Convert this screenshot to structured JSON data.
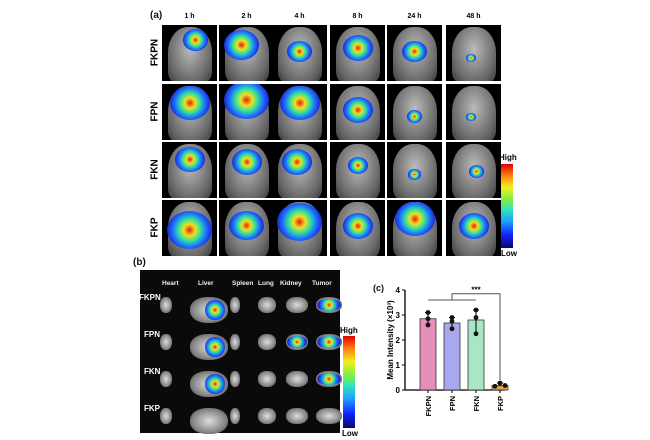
{
  "panel_a": {
    "label": "(a)",
    "timepoints": [
      "1 h",
      "2 h",
      "4 h",
      "8 h",
      "24 h",
      "48 h"
    ],
    "groups": [
      "FKPN",
      "FPN",
      "FKN",
      "FKP"
    ],
    "colorbar": {
      "high": "High",
      "low": "Low"
    }
  },
  "panel_b": {
    "label": "(b)",
    "organs": [
      "Heart",
      "Liver",
      "Spleen",
      "Lung",
      "Kidney",
      "Tumor"
    ],
    "groups": [
      "FKPN",
      "FPN",
      "FKN",
      "FKP"
    ],
    "colorbar": {
      "high": "High",
      "low": "Low"
    }
  },
  "chart_data": {
    "label": "(c)",
    "type": "bar",
    "categories": [
      "FKPN",
      "FPN",
      "FKN",
      "FKP"
    ],
    "values": [
      2.85,
      2.68,
      2.8,
      0.18
    ],
    "points": [
      [
        3.1,
        2.85,
        2.6
      ],
      [
        2.9,
        2.75,
        2.45
      ],
      [
        3.2,
        2.9,
        2.25
      ],
      [
        0.15,
        0.28,
        0.18
      ]
    ],
    "colors": [
      "#e58fb8",
      "#a9a8ef",
      "#a8e6c6",
      "#f0a040"
    ],
    "ylabel": "Mean Intensity (×10³)",
    "ylim": [
      0,
      4
    ],
    "yticks": [
      "0",
      "1",
      "2",
      "3",
      "4"
    ],
    "significance": "***"
  }
}
